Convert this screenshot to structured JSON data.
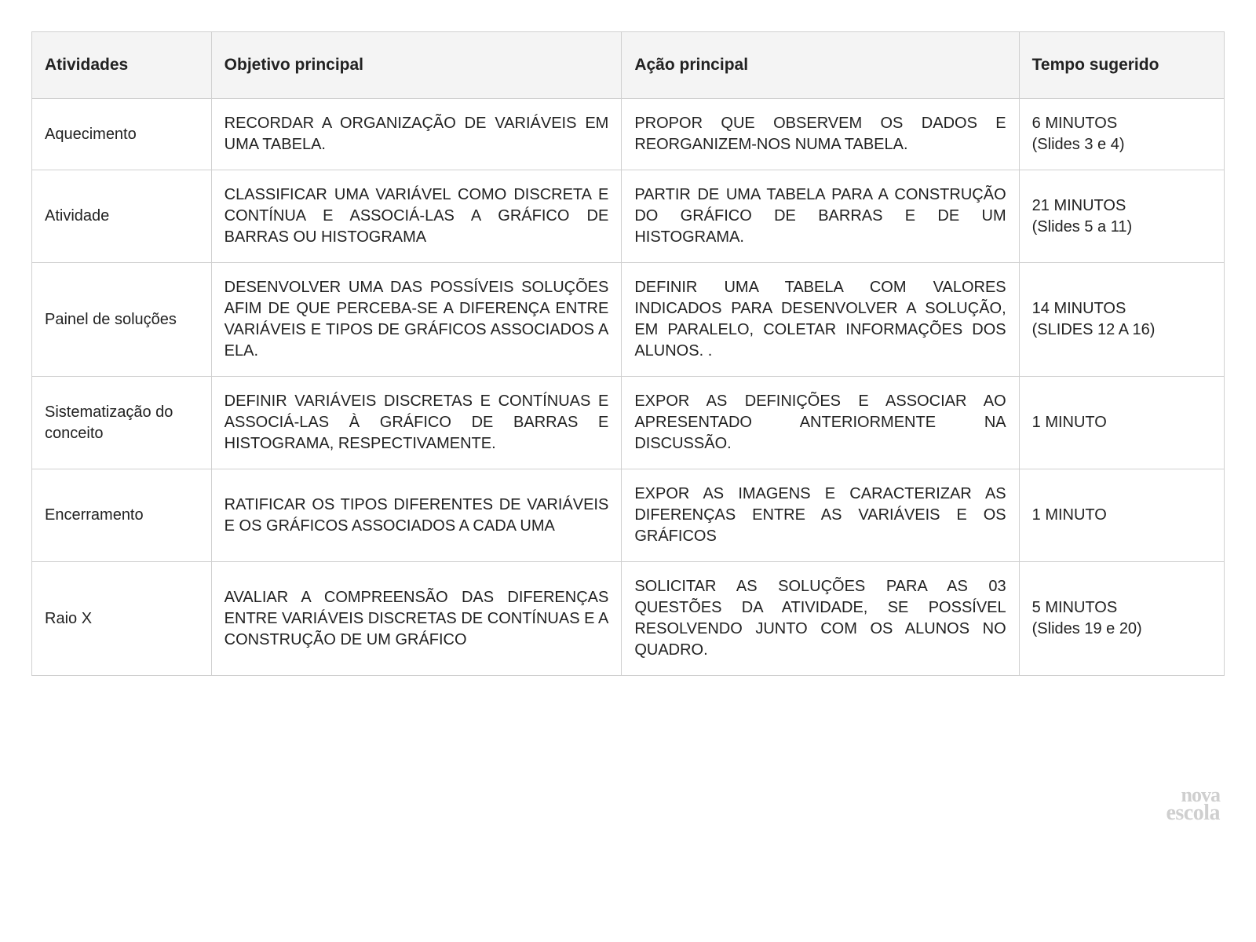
{
  "table": {
    "columns": [
      {
        "label": "Atividades",
        "width": "14%"
      },
      {
        "label": "Objetivo principal",
        "width": "32%"
      },
      {
        "label": "Ação principal",
        "width": "31%"
      },
      {
        "label": "Tempo sugerido",
        "width": "16%"
      }
    ],
    "rows": [
      {
        "activity": "Aquecimento",
        "objective": "RECORDAR A ORGANIZAÇÃO DE VARIÁVEIS EM UMA TABELA.",
        "action": "PROPOR QUE OBSERVEM OS DADOS E REORGANIZEM-NOS NUMA TABELA.",
        "time": "6 MINUTOS\n(Slides 3 e 4)"
      },
      {
        "activity": "Atividade",
        "objective": "CLASSIFICAR UMA VARIÁVEL COMO DISCRETA E CONTÍNUA E ASSOCIÁ-LAS A GRÁFICO DE BARRAS OU HISTOGRAMA",
        "action": "PARTIR DE UMA TABELA PARA A CONSTRUÇÃO DO GRÁFICO DE BARRAS E DE UM HISTOGRAMA.",
        "time": "21 MINUTOS\n(Slides 5 a 11)"
      },
      {
        "activity": "Painel de soluções",
        "objective": "DESENVOLVER UMA DAS POSSÍVEIS SOLUÇÕES AFIM DE QUE PERCEBA-SE A DIFERENÇA ENTRE VARIÁVEIS E TIPOS DE GRÁFICOS ASSOCIADOS A ELA.",
        "action": "DEFINIR UMA TABELA COM VALORES INDICADOS PARA DESENVOLVER A SOLUÇÃO, EM PARALELO, COLETAR INFORMAÇÕES DOS ALUNOS. .",
        "time": "14 MINUTOS\n(SLIDES 12 A 16)"
      },
      {
        "activity": "Sistematização do conceito",
        "objective": "DEFINIR VARIÁVEIS DISCRETAS E CONTÍNUAS E ASSOCIÁ-LAS À GRÁFICO DE BARRAS E HISTOGRAMA, RESPECTIVAMENTE.",
        "action": "EXPOR AS DEFINIÇÕES E ASSOCIAR AO APRESENTADO ANTERIORMENTE NA DISCUSSÃO.",
        "time": "1 MINUTO"
      },
      {
        "activity": "Encerramento",
        "objective": "RATIFICAR OS TIPOS DIFERENTES DE VARIÁVEIS E OS GRÁFICOS ASSOCIADOS A CADA UMA",
        "action": "EXPOR AS IMAGENS E CARACTERIZAR AS DIFERENÇAS ENTRE AS VARIÁVEIS E OS GRÁFICOS",
        "time": "1 MINUTO"
      },
      {
        "activity": "Raio X",
        "objective": "AVALIAR A COMPREENSÃO DAS DIFERENÇAS ENTRE VARIÁVEIS DISCRETAS DE CONTÍNUAS E A CONSTRUÇÃO DE UM GRÁFICO",
        "action": "SOLICITAR AS SOLUÇÕES PARA AS 03 QUESTÕES DA ATIVIDADE, SE POSSÍVEL RESOLVENDO JUNTO COM OS ALUNOS NO QUADRO.",
        "time": "5 MINUTOS\n(Slides 19 e 20)"
      }
    ],
    "styling": {
      "border_color": "#d0d0d0",
      "header_bg": "#f4f4f4",
      "text_color": "#222222",
      "header_fontsize": 21,
      "body_fontsize": 20,
      "font_family": "Segoe UI, sans-serif"
    }
  },
  "watermark": {
    "line1": "nova",
    "line2": "escola",
    "color": "#cfcfcf"
  }
}
